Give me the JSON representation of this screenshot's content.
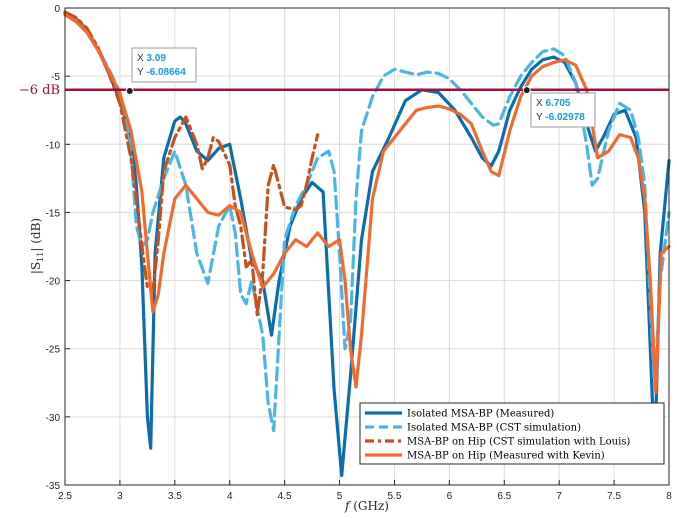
{
  "chart_data": {
    "type": "line",
    "xlabel_italic": "f",
    "xlabel_rest": " (GHz)",
    "ylabel_prefix": "|S",
    "ylabel_sub": "11",
    "ylabel_suffix": "| (dB)",
    "xlim": [
      2.5,
      8
    ],
    "ylim": [
      -35,
      0
    ],
    "xticks": [
      2.5,
      3,
      3.5,
      4,
      4.5,
      5,
      5.5,
      6,
      6.5,
      7,
      7.5,
      8
    ],
    "xtick_labels": [
      "2.5",
      "3",
      "3.5",
      "4",
      "4.5",
      "5",
      "5.5",
      "6",
      "6.5",
      "7",
      "7.5",
      "8"
    ],
    "yticks": [
      0,
      -5,
      -10,
      -15,
      -20,
      -25,
      -30,
      -35
    ],
    "ytick_labels": [
      "0",
      "-5",
      "-10",
      "-15",
      "-20",
      "-25",
      "-30",
      "-35"
    ],
    "grid": true,
    "legend_position": "bottom-right",
    "reference_line": {
      "y": -6,
      "label": "−6 dB",
      "color": "#a0103a"
    },
    "datatips": [
      {
        "x_label": "X",
        "x_value": "3.09",
        "y_label": "Y",
        "y_value": "-6.08664",
        "x": 3.09,
        "y": -6.08664
      },
      {
        "x_label": "X",
        "x_value": "6.705",
        "y_label": "Y",
        "y_value": "-6.02978",
        "x": 6.705,
        "y": -6.02978
      }
    ],
    "series": [
      {
        "name": "Isolated MSA-BP (Measured)",
        "color": "#0a6db0",
        "style": "solid",
        "x": [
          2.5,
          2.6,
          2.7,
          2.8,
          2.9,
          3.0,
          3.1,
          3.15,
          3.2,
          3.25,
          3.28,
          3.32,
          3.4,
          3.5,
          3.55,
          3.6,
          3.7,
          3.8,
          3.9,
          4.0,
          4.1,
          4.2,
          4.3,
          4.38,
          4.45,
          4.55,
          4.65,
          4.75,
          4.85,
          4.95,
          5.02,
          5.1,
          5.2,
          5.3,
          5.45,
          5.6,
          5.75,
          5.9,
          6.05,
          6.2,
          6.3,
          6.38,
          6.45,
          6.55,
          6.65,
          6.75,
          6.85,
          6.95,
          7.05,
          7.15,
          7.25,
          7.33,
          7.4,
          7.5,
          7.6,
          7.7,
          7.78,
          7.83,
          7.87,
          7.92,
          8.0
        ],
        "y": [
          -0.4,
          -0.8,
          -1.6,
          -3.0,
          -4.8,
          -6.8,
          -9.5,
          -13,
          -19,
          -30,
          -32.3,
          -18,
          -11,
          -8.3,
          -8.0,
          -8.5,
          -10.5,
          -11.2,
          -10.3,
          -10.0,
          -14,
          -18.5,
          -20,
          -24,
          -20,
          -16,
          -14,
          -12.8,
          -13.5,
          -28,
          -34.3,
          -27,
          -17,
          -12,
          -9.5,
          -6.8,
          -6.0,
          -6.2,
          -7.5,
          -9.5,
          -11,
          -11.6,
          -10.5,
          -7.5,
          -5.8,
          -4.5,
          -3.8,
          -3.6,
          -4.0,
          -5.5,
          -8.5,
          -10.5,
          -9.5,
          -7.8,
          -7.5,
          -9.5,
          -15,
          -25,
          -33,
          -18,
          -11.2
        ]
      },
      {
        "name": "Isolated MSA-BP (CST simulation)",
        "color": "#4bb6e6",
        "style": "dashed",
        "x": [
          2.5,
          2.6,
          2.7,
          2.8,
          2.9,
          3.0,
          3.05,
          3.1,
          3.15,
          3.2,
          3.25,
          3.3,
          3.4,
          3.5,
          3.6,
          3.7,
          3.8,
          3.9,
          4.0,
          4.05,
          4.1,
          4.15,
          4.2,
          4.3,
          4.35,
          4.4,
          4.45,
          4.5,
          4.6,
          4.7,
          4.8,
          4.9,
          4.95,
          5.0,
          5.05,
          5.1,
          5.15,
          5.2,
          5.3,
          5.4,
          5.5,
          5.6,
          5.7,
          5.8,
          5.9,
          6.0,
          6.1,
          6.2,
          6.3,
          6.4,
          6.45,
          6.55,
          6.65,
          6.75,
          6.85,
          6.95,
          7.05,
          7.15,
          7.25,
          7.3,
          7.35,
          7.45,
          7.55,
          7.65,
          7.72,
          7.78,
          7.82,
          7.87,
          7.92,
          8.0
        ],
        "y": [
          -0.5,
          -0.9,
          -1.7,
          -3.0,
          -4.5,
          -6.2,
          -8.0,
          -10.5,
          -16,
          -17.5,
          -17.0,
          -15,
          -12.5,
          -10.5,
          -13,
          -18,
          -20.2,
          -16,
          -14.5,
          -16.5,
          -21,
          -21.7,
          -20,
          -24,
          -29,
          -31,
          -24,
          -17,
          -14.5,
          -13,
          -11,
          -10.5,
          -12,
          -18,
          -25,
          -23,
          -14,
          -9,
          -6.5,
          -5.0,
          -4.5,
          -4.7,
          -4.9,
          -4.7,
          -4.8,
          -5.2,
          -6.0,
          -7.0,
          -8.0,
          -8.6,
          -8.5,
          -6.5,
          -5.0,
          -4.0,
          -3.2,
          -3.0,
          -3.5,
          -5.5,
          -10,
          -13.0,
          -12.5,
          -9,
          -7.0,
          -7.5,
          -9.5,
          -13,
          -20,
          -28,
          -20,
          -15
        ]
      },
      {
        "name": "MSA-BP on Hip (CST simulation with Louis)",
        "color": "#c8501a",
        "style": "dashdot",
        "x": [
          2.5,
          2.6,
          2.7,
          2.8,
          2.9,
          3.0,
          3.05,
          3.1,
          3.15,
          3.2,
          3.25,
          3.3,
          3.35,
          3.4,
          3.5,
          3.6,
          3.7,
          3.75,
          3.8,
          3.85,
          3.9,
          4.0,
          4.05,
          4.1,
          4.15,
          4.2,
          4.25,
          4.3,
          4.35,
          4.4,
          4.5,
          4.6,
          4.65,
          4.7,
          4.75,
          4.8
        ],
        "y": [
          -0.3,
          -0.7,
          -1.5,
          -2.9,
          -4.8,
          -7.0,
          -9,
          -11,
          -14,
          -17.5,
          -20.5,
          -20.8,
          -17,
          -12,
          -9.5,
          -8.0,
          -10,
          -11.8,
          -11.0,
          -9.5,
          -9.8,
          -11.5,
          -14.5,
          -16,
          -19,
          -18.5,
          -22.5,
          -19.5,
          -13,
          -11.5,
          -14.6,
          -14.8,
          -14.5,
          -13.0,
          -11.0,
          -9.3
        ]
      },
      {
        "name": "MSA-BP on Hip (Measured with Kevin)",
        "color": "#f26b2e",
        "style": "solid",
        "x": [
          2.5,
          2.6,
          2.7,
          2.8,
          2.9,
          3.0,
          3.1,
          3.2,
          3.25,
          3.3,
          3.35,
          3.4,
          3.5,
          3.6,
          3.7,
          3.8,
          3.9,
          4.0,
          4.1,
          4.2,
          4.3,
          4.35,
          4.4,
          4.5,
          4.6,
          4.7,
          4.8,
          4.9,
          5.0,
          5.05,
          5.1,
          5.15,
          5.2,
          5.3,
          5.4,
          5.5,
          5.6,
          5.7,
          5.8,
          5.9,
          6.0,
          6.1,
          6.2,
          6.3,
          6.38,
          6.45,
          6.55,
          6.65,
          6.75,
          6.85,
          6.95,
          7.05,
          7.15,
          7.25,
          7.3,
          7.35,
          7.45,
          7.55,
          7.65,
          7.72,
          7.78,
          7.83,
          7.88,
          7.93,
          8.0
        ],
        "y": [
          -0.5,
          -1.0,
          -1.8,
          -3.1,
          -4.6,
          -6.3,
          -9,
          -13.5,
          -18,
          -22.3,
          -21,
          -18,
          -14,
          -13,
          -14,
          -15,
          -15.2,
          -14.5,
          -15,
          -18,
          -20.5,
          -20.0,
          -19.5,
          -18,
          -17,
          -17.5,
          -16.5,
          -17.5,
          -17,
          -20,
          -25,
          -27.8,
          -24,
          -14,
          -10.5,
          -9.5,
          -8.5,
          -7.5,
          -7.3,
          -7.2,
          -7.4,
          -7.8,
          -8.5,
          -10.5,
          -12.0,
          -12.3,
          -9,
          -6.5,
          -5.0,
          -4.3,
          -4.0,
          -3.8,
          -4.2,
          -6.0,
          -8.5,
          -11,
          -10.5,
          -9.3,
          -9.5,
          -11,
          -14,
          -20,
          -28.2,
          -18,
          -17.5
        ]
      }
    ]
  }
}
